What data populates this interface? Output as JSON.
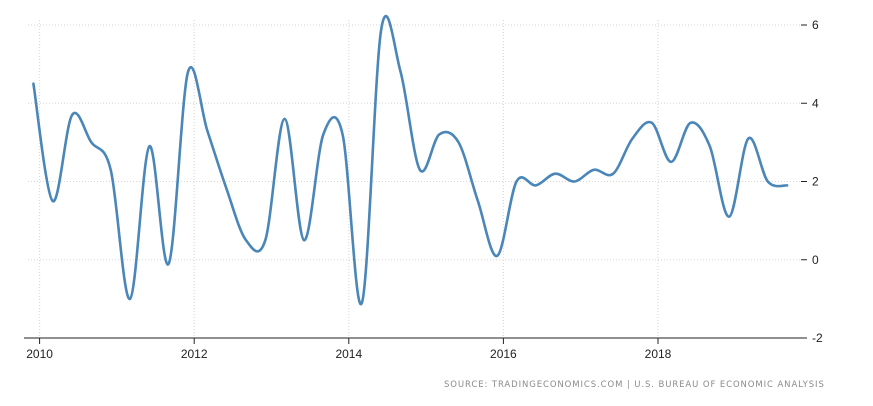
{
  "chart_data": {
    "type": "line",
    "title": "",
    "xlabel": "",
    "ylabel": "",
    "xlim": [
      2009.85,
      2019.85
    ],
    "ylim": [
      -2,
      6
    ],
    "grid": true,
    "line_color": "#4a86b8",
    "x_ticks": [
      {
        "value": 2010,
        "label": "2010"
      },
      {
        "value": 2012,
        "label": "2012"
      },
      {
        "value": 2014,
        "label": "2014"
      },
      {
        "value": 2016,
        "label": "2016"
      },
      {
        "value": 2018,
        "label": "2018"
      }
    ],
    "y_ticks": [
      {
        "value": 6,
        "label": "6"
      },
      {
        "value": 4,
        "label": "4"
      },
      {
        "value": 2,
        "label": "2"
      },
      {
        "value": 0,
        "label": "0"
      },
      {
        "value": -2,
        "label": "-2"
      }
    ],
    "series": [
      {
        "x": [
          2009.92,
          2010.17,
          2010.42,
          2010.67,
          2010.92,
          2011.17,
          2011.42,
          2011.67,
          2011.92,
          2012.17,
          2012.42,
          2012.67,
          2012.92,
          2013.17,
          2013.42,
          2013.67,
          2013.92,
          2014.17,
          2014.42,
          2014.67,
          2014.92,
          2015.17,
          2015.42,
          2015.67,
          2015.92,
          2016.17,
          2016.42,
          2016.67,
          2016.92,
          2017.17,
          2017.42,
          2017.67,
          2017.92,
          2018.17,
          2018.42,
          2018.67,
          2018.92,
          2019.17,
          2019.42,
          2019.67
        ],
        "values": [
          4.5,
          1.5,
          3.7,
          3.0,
          2.3,
          -1.0,
          2.9,
          -0.1,
          4.8,
          3.3,
          1.8,
          0.5,
          0.5,
          3.6,
          0.5,
          3.2,
          3.2,
          -1.1,
          5.9,
          4.8,
          2.3,
          3.2,
          3.0,
          1.5,
          0.1,
          2.0,
          1.9,
          2.2,
          2.0,
          2.3,
          2.2,
          3.1,
          3.5,
          2.5,
          3.5,
          2.9,
          1.1,
          3.1,
          2.0,
          1.9
        ]
      }
    ]
  },
  "footer": {
    "source": "SOURCE: TRADINGECONOMICS.COM | U.S. BUREAU OF ECONOMIC ANALYSIS"
  }
}
